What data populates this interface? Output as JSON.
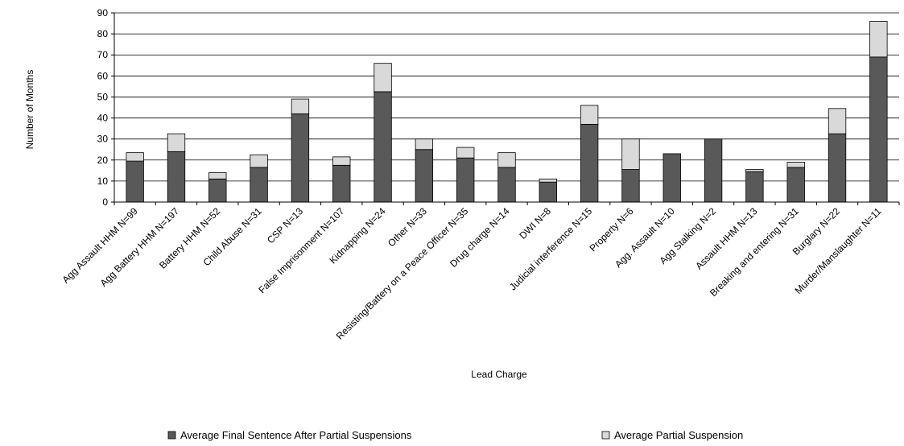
{
  "chart_data": {
    "type": "bar",
    "stacked": true,
    "ylabel": "Number of Months",
    "xlabel": "Lead Charge",
    "ylim": [
      0,
      90
    ],
    "yticks": [
      0,
      10,
      20,
      30,
      40,
      50,
      60,
      70,
      80,
      90
    ],
    "grid": true,
    "legend_position": "bottom",
    "categories": [
      "Agg Assault HHM N=99",
      "Agg Battery HHM N=197",
      "Battery HHM N=52",
      "Child Abuse N=31",
      "CSP N=13",
      "False Imprisonment N=107",
      "Kidnapping N=24",
      "Other N=33",
      "Resisting/Battery on a Peace Officer N=35",
      "Drug charge N=14",
      "DWI N=8",
      "Judicial interference N=15",
      "Property N=6",
      "Agg. Assault N=10",
      "Agg Stalking N=2",
      "Assault HHM N=13",
      "Breaking and entering N=31",
      "Burglary N=22",
      "Murder/Manslaughter N=11"
    ],
    "series": [
      {
        "name": "Average Final Sentence After Partial Suspensions",
        "color": "#595959",
        "values": [
          19.5,
          24,
          11,
          16.5,
          42,
          17.5,
          52.5,
          25,
          21,
          16.5,
          9.5,
          37,
          15.5,
          23,
          30,
          14.5,
          16.5,
          32.5,
          69
        ]
      },
      {
        "name": "Average Partial Suspension",
        "color": "#d9d9d9",
        "values": [
          4,
          8.5,
          3,
          6,
          7,
          4,
          13.5,
          5,
          5,
          7,
          1.5,
          9,
          14.5,
          0,
          0,
          1,
          2.5,
          12,
          17
        ]
      }
    ]
  }
}
